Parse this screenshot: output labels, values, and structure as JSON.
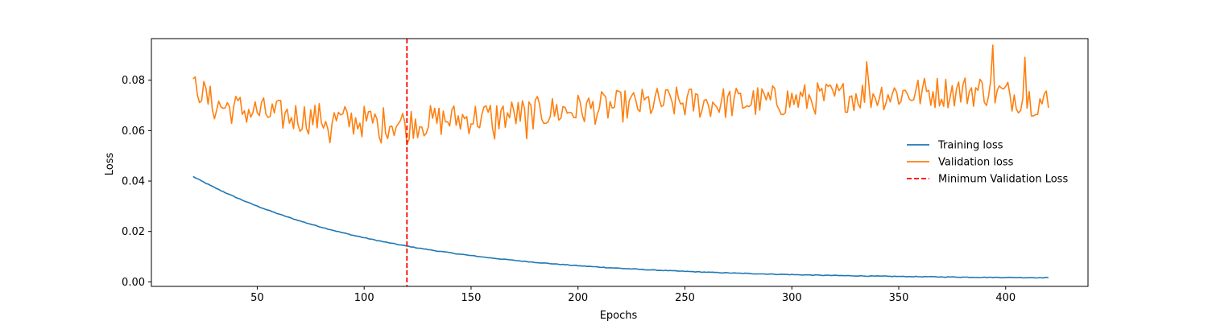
{
  "chart_data": {
    "type": "line",
    "title": "",
    "xlabel": "Epochs",
    "ylabel": "Loss",
    "xlim": [
      0.5,
      438.5
    ],
    "ylim": [
      -0.0018,
      0.0965
    ],
    "xticks": [
      50,
      100,
      150,
      200,
      250,
      300,
      350,
      400
    ],
    "xtick_labels": [
      "50",
      "100",
      "150",
      "200",
      "250",
      "300",
      "350",
      "400"
    ],
    "yticks": [
      0.0,
      0.02,
      0.04,
      0.06,
      0.08
    ],
    "ytick_labels": [
      "0.00",
      "0.02",
      "0.04",
      "0.06",
      "0.08"
    ],
    "grid": false,
    "legend_position": "center-right",
    "series": [
      {
        "name": "Training loss",
        "color": "#1f77b4",
        "style": "solid",
        "x_start": 20,
        "x_end": 420,
        "y_start": 0.0418,
        "y_end": 0.002,
        "decay_rate": 0.0114,
        "asymptote": 0.0012,
        "noise": 0.00025
      },
      {
        "name": "Validation loss",
        "color": "#ff7f0e",
        "style": "solid",
        "x_start": 20,
        "x_end": 420,
        "trend_x": [
          20,
          25,
          30,
          60,
          90,
          120,
          150,
          180,
          210,
          240,
          270,
          300,
          330,
          360,
          390,
          420
        ],
        "trend_y": [
          0.081,
          0.074,
          0.07,
          0.066,
          0.064,
          0.063,
          0.065,
          0.067,
          0.069,
          0.071,
          0.071,
          0.072,
          0.074,
          0.075,
          0.076,
          0.071
        ],
        "noise": 0.0065,
        "peaks": [
          {
            "x": 20,
            "y": 0.0805
          },
          {
            "x": 21,
            "y": 0.0813
          },
          {
            "x": 84,
            "y": 0.0552
          },
          {
            "x": 108,
            "y": 0.0551
          },
          {
            "x": 120,
            "y": 0.0545
          },
          {
            "x": 161,
            "y": 0.0567
          },
          {
            "x": 176,
            "y": 0.0568
          },
          {
            "x": 335,
            "y": 0.0873
          },
          {
            "x": 394,
            "y": 0.0939
          },
          {
            "x": 409,
            "y": 0.0891
          },
          {
            "x": 420,
            "y": 0.0691
          }
        ]
      },
      {
        "name": "Minimum Validation Loss",
        "color": "#ff0000",
        "style": "dashed",
        "vline_x": 120
      }
    ]
  }
}
